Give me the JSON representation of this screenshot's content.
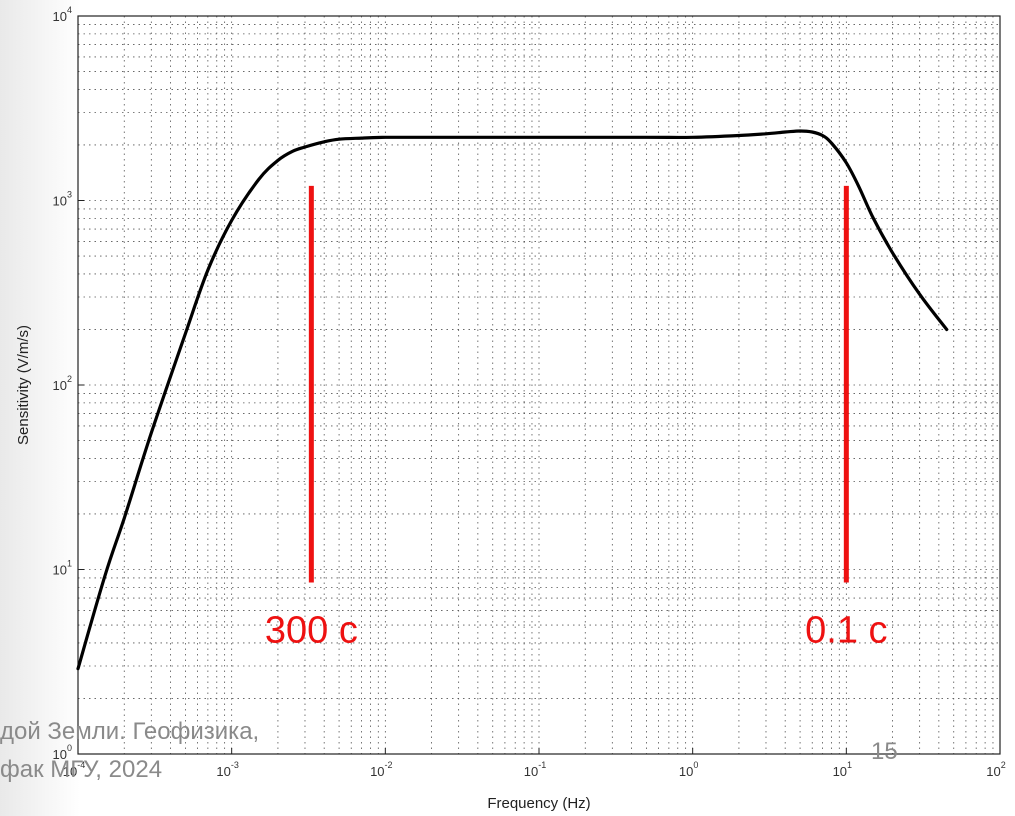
{
  "footer": {
    "line1": "дой Земли. Геофизика,",
    "line2": "фак МГУ, 2024",
    "slide_number": "15"
  },
  "chart_data": {
    "type": "line",
    "xscale": "log",
    "yscale": "log",
    "xlim": [
      0.0001,
      100
    ],
    "ylim": [
      1,
      10000
    ],
    "grid": true,
    "xlabel": "Frequency (Hz)",
    "ylabel": "Sensitivity (V/m/s)",
    "x_ticks": [
      {
        "base": "10",
        "exp": "-4"
      },
      {
        "base": "10",
        "exp": "-3"
      },
      {
        "base": "10",
        "exp": "-2"
      },
      {
        "base": "10",
        "exp": "-1"
      },
      {
        "base": "10",
        "exp": "0"
      },
      {
        "base": "10",
        "exp": "1"
      },
      {
        "base": "10",
        "exp": "2"
      }
    ],
    "y_ticks": [
      {
        "base": "10",
        "exp": "0"
      },
      {
        "base": "10",
        "exp": "1"
      },
      {
        "base": "10",
        "exp": "2"
      },
      {
        "base": "10",
        "exp": "3"
      },
      {
        "base": "10",
        "exp": "4"
      }
    ],
    "series": [
      {
        "color": "#000000",
        "x": [
          0.0001,
          0.00015,
          0.0002,
          0.0003,
          0.0005,
          0.0007,
          0.001,
          0.0015,
          0.002,
          0.0025,
          0.003,
          0.004,
          0.005,
          0.007,
          0.01,
          0.02,
          0.05,
          0.1,
          0.5,
          1,
          2,
          3,
          4,
          5,
          6,
          7,
          8,
          10,
          12,
          15,
          20,
          30,
          45
        ],
        "y": [
          2.9,
          9.3,
          19,
          55,
          190,
          420,
          780,
          1300,
          1650,
          1850,
          1950,
          2080,
          2150,
          2180,
          2200,
          2200,
          2200,
          2200,
          2200,
          2200,
          2250,
          2300,
          2350,
          2380,
          2350,
          2250,
          2050,
          1600,
          1200,
          800,
          520,
          310,
          200
        ]
      }
    ],
    "annotations": [
      {
        "text": "300 c",
        "x": 0.0033,
        "y_from": 8.5,
        "y_to": 1200,
        "color": "#ee1111"
      },
      {
        "text": "0.1 c",
        "x": 10,
        "y_from": 8.5,
        "y_to": 1200,
        "color": "#ee1111"
      }
    ]
  }
}
